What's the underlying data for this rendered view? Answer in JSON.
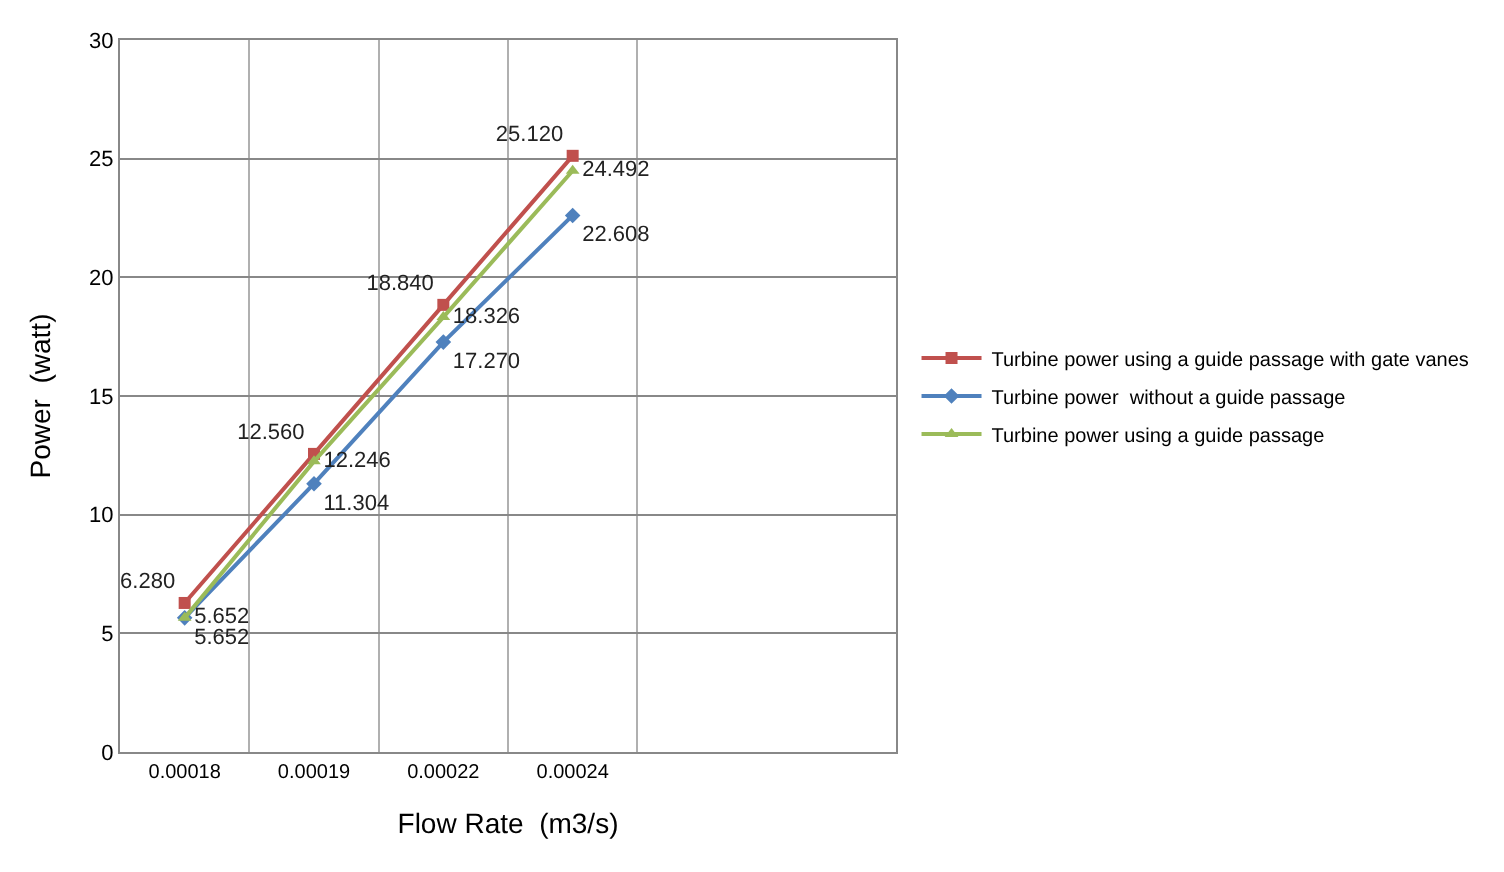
{
  "chart_data": {
    "type": "line",
    "xlabel": "Flow Rate  (m3/s)",
    "ylabel": "Power  (watt)",
    "categories": [
      "0.00018",
      "0.00019",
      "0.00022",
      "0.00024",
      null,
      null
    ],
    "series": [
      {
        "name": "Turbine power using a guide passage with gate vanes",
        "color": "#c0504d",
        "marker": "square",
        "values": [
          6.28,
          12.56,
          18.84,
          25.12,
          null,
          null
        ],
        "value_labels": [
          "6.280",
          "12.560",
          "18.840",
          "25.120",
          null,
          null
        ]
      },
      {
        "name": "Turbine power  without a guide passage",
        "color": "#4f81bd",
        "marker": "diamond",
        "values": [
          5.652,
          11.304,
          17.27,
          22.608,
          null,
          null
        ],
        "value_labels": [
          "5.652",
          "11.304",
          "17.270",
          "22.608",
          null,
          null
        ]
      },
      {
        "name": "Turbine power using a guide passage",
        "color": "#9bbb59",
        "marker": "triangle",
        "values": [
          5.652,
          12.246,
          18.326,
          24.492,
          null,
          null
        ],
        "value_labels": [
          "5.652",
          "12.246",
          "18.326",
          "24.492",
          null,
          null
        ]
      }
    ],
    "ylim": [
      0,
      30
    ],
    "yticks": [
      0,
      5,
      10,
      15,
      20,
      25,
      30
    ],
    "grid": true,
    "legend": "right"
  }
}
